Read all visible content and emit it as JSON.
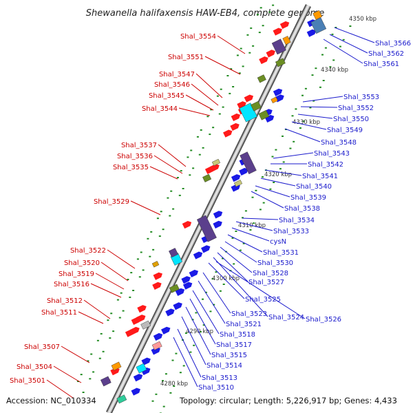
{
  "title": "Shewanella halifaxensis HAW-EB4, complete genome",
  "accession": "Accession: NC_010334",
  "topology": "Topology: circular; Length: 5,226,917 bp; Genes: 4,433",
  "kbp_ticks": [
    "4350 kbp",
    "4340 kbp",
    "4330 kbp",
    "4320 kbp",
    "4310 kbp",
    "4300 kbp",
    "4290 kbp",
    "4280 kbp"
  ],
  "left_labels": [
    "Shal_3554",
    "Shal_3551",
    "Shal_3547",
    "Shal_3546",
    "Shal_3545",
    "Shal_3544",
    "Shal_3537",
    "Shal_3536",
    "Shal_3535",
    "Shal_3529",
    "Shal_3522",
    "Shal_3520",
    "Shal_3519",
    "Shal_3516",
    "Shal_3512",
    "Shal_3511",
    "Shal_3507",
    "Shal_3504",
    "Shal_3501"
  ],
  "right_labels": [
    "Shal_3566",
    "Shal_3562",
    "Shal_3561",
    "Shal_3553",
    "Shal_3552",
    "Shal_3550",
    "Shal_3549",
    "Shal_3548",
    "Shal_3543",
    "Shal_3542",
    "Shal_3541",
    "Shal_3540",
    "Shal_3539",
    "Shal_3538",
    "Shal_3534",
    "Shal_3533",
    "cysN",
    "Shal_3531",
    "Shal_3530",
    "Shal_3528",
    "Shal_3527",
    "Shal_3525",
    "Shal_3524",
    "Shal_3526",
    "Shal_3523",
    "Shal_3521",
    "Shal_3518",
    "Shal_3517",
    "Shal_3515",
    "Shal_3514",
    "Shal_3513",
    "Shal_3510"
  ],
  "colors": {
    "forward_gene": "#ff1a1a",
    "reverse_gene": "#1a1ae6",
    "left_label": "#cc0000",
    "right_label": "#1a1acc",
    "backbone": "#808080",
    "gc_dots": "#228b22"
  }
}
